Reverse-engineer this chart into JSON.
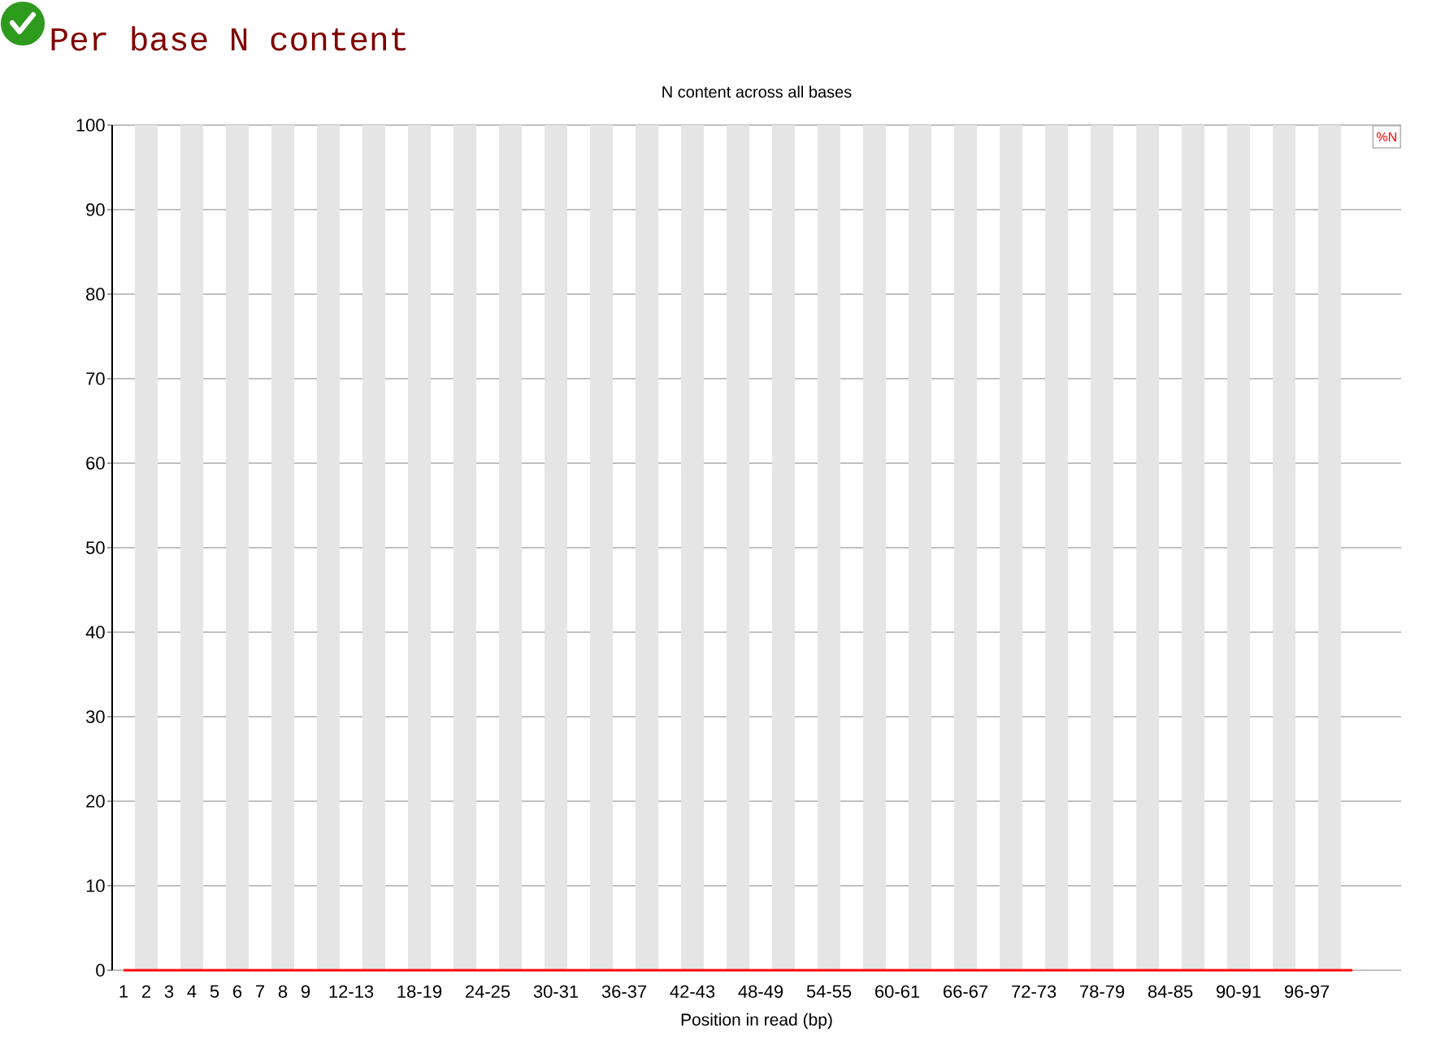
{
  "chart_data": {
    "type": "line",
    "title": "Per base N content",
    "subtitle": "N content across all bases",
    "xlabel": "Position in read (bp)",
    "categories": [
      "1",
      "2",
      "3",
      "4",
      "5",
      "6",
      "7",
      "8",
      "9",
      null,
      "12-13",
      null,
      null,
      "18-19",
      null,
      null,
      "24-25",
      null,
      null,
      "30-31",
      null,
      null,
      "36-37",
      null,
      null,
      "42-43",
      null,
      null,
      "48-49",
      null,
      null,
      "54-55",
      null,
      null,
      "60-61",
      null,
      null,
      "66-67",
      null,
      null,
      "72-73",
      null,
      null,
      "78-79",
      null,
      null,
      "84-85",
      null,
      null,
      "90-91",
      null,
      null,
      "96-97",
      null,
      null
    ],
    "series": [
      {
        "name": "%N",
        "color": "#ff0000",
        "values": [
          0,
          0,
          0,
          0,
          0,
          0,
          0,
          0,
          0,
          0,
          0,
          0,
          0,
          0,
          0,
          0,
          0,
          0,
          0,
          0,
          0,
          0,
          0,
          0,
          0,
          0,
          0,
          0,
          0,
          0,
          0,
          0,
          0,
          0,
          0,
          0,
          0,
          0,
          0,
          0,
          0,
          0,
          0,
          0,
          0,
          0,
          0,
          0,
          0,
          0,
          0,
          0,
          0,
          0,
          0
        ]
      }
    ],
    "ylim": [
      0,
      100
    ],
    "yticks": [
      0,
      10,
      20,
      30,
      40,
      50,
      60,
      70,
      80,
      90,
      100
    ],
    "grid": "y",
    "legend": "top right"
  }
}
